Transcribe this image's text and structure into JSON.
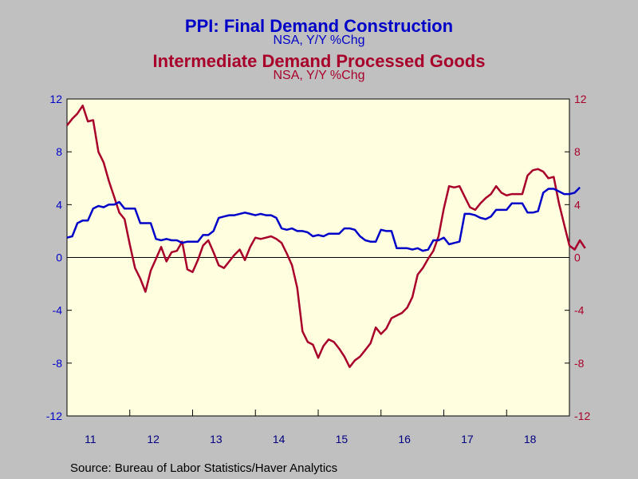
{
  "header": {
    "title1": "PPI: Final Demand Construction",
    "subtitle1": "NSA, Y/Y %Chg",
    "title2": "Intermediate Demand Processed Goods",
    "subtitle2": "NSA, Y/Y %Chg"
  },
  "footer": {
    "source": "Source:  Bureau of Labor Statistics/Haver Analytics"
  },
  "colors": {
    "series1": "#0000c8",
    "series2": "#a8002a",
    "plot_bg": "#ffffe0",
    "page_bg": "#c0c0c0"
  },
  "chart_data": {
    "type": "line",
    "grid": false,
    "ylim": [
      -12,
      12
    ],
    "y2lim": [
      -12,
      12
    ],
    "yticks": [
      12,
      8,
      4,
      0,
      -4,
      -8,
      -12
    ],
    "xlim": [
      2011.0,
      2019.0
    ],
    "xtick_labels": [
      "11",
      "12",
      "13",
      "14",
      "15",
      "16",
      "17",
      "18"
    ],
    "series": [
      {
        "name": "PPI: Final Demand Construction",
        "axis": "left",
        "x_start": 2011.0,
        "x_step": 0.0833333,
        "values": [
          1.5,
          1.6,
          2.6,
          2.8,
          2.8,
          3.7,
          3.9,
          3.8,
          4.0,
          4.0,
          4.2,
          3.7,
          3.7,
          3.7,
          2.6,
          2.6,
          2.6,
          1.4,
          1.3,
          1.4,
          1.3,
          1.3,
          1.1,
          1.2,
          1.2,
          1.2,
          1.7,
          1.7,
          2.0,
          3.0,
          3.1,
          3.2,
          3.2,
          3.3,
          3.4,
          3.3,
          3.2,
          3.3,
          3.2,
          3.2,
          3.0,
          2.2,
          2.1,
          2.2,
          2.0,
          2.0,
          1.9,
          1.6,
          1.7,
          1.6,
          1.8,
          1.8,
          1.8,
          2.2,
          2.2,
          2.1,
          1.6,
          1.3,
          1.2,
          1.2,
          2.1,
          2.0,
          2.0,
          0.7,
          0.7,
          0.7,
          0.6,
          0.7,
          0.5,
          0.6,
          1.3,
          1.3,
          1.5,
          1.0,
          1.1,
          1.2,
          3.3,
          3.3,
          3.2,
          3.0,
          2.9,
          3.1,
          3.6,
          3.6,
          3.6,
          4.1,
          4.1,
          4.1,
          3.4,
          3.4,
          3.5,
          4.9,
          5.2,
          5.2,
          5.0,
          4.8,
          4.8,
          4.9,
          5.3
        ]
      },
      {
        "name": "Intermediate Demand Processed Goods",
        "axis": "right",
        "x_start": 2011.0,
        "x_step": 0.0833333,
        "values": [
          10.0,
          10.5,
          10.9,
          11.5,
          10.3,
          10.4,
          8.0,
          7.2,
          5.8,
          4.6,
          3.4,
          2.9,
          1.0,
          -0.8,
          -1.6,
          -2.6,
          -1.0,
          -0.1,
          0.8,
          -0.3,
          0.4,
          0.5,
          1.2,
          -0.9,
          -1.1,
          -0.2,
          0.9,
          1.3,
          0.4,
          -0.6,
          -0.8,
          -0.3,
          0.2,
          0.6,
          -0.2,
          0.8,
          1.5,
          1.4,
          1.5,
          1.6,
          1.4,
          1.1,
          0.3,
          -0.6,
          -2.3,
          -5.6,
          -6.4,
          -6.6,
          -7.6,
          -6.7,
          -6.2,
          -6.4,
          -6.9,
          -7.5,
          -8.3,
          -7.8,
          -7.5,
          -7.0,
          -6.5,
          -5.3,
          -5.8,
          -5.4,
          -4.6,
          -4.4,
          -4.2,
          -3.8,
          -3.0,
          -1.3,
          -0.8,
          -0.1,
          0.5,
          1.6,
          3.7,
          5.4,
          5.3,
          5.4,
          4.6,
          3.8,
          3.6,
          4.1,
          4.5,
          4.8,
          5.4,
          4.9,
          4.7,
          4.8,
          4.8,
          4.8,
          6.2,
          6.6,
          6.7,
          6.5,
          6.0,
          6.1,
          4.1,
          2.5,
          0.9,
          0.6,
          1.3,
          0.7
        ]
      }
    ]
  }
}
